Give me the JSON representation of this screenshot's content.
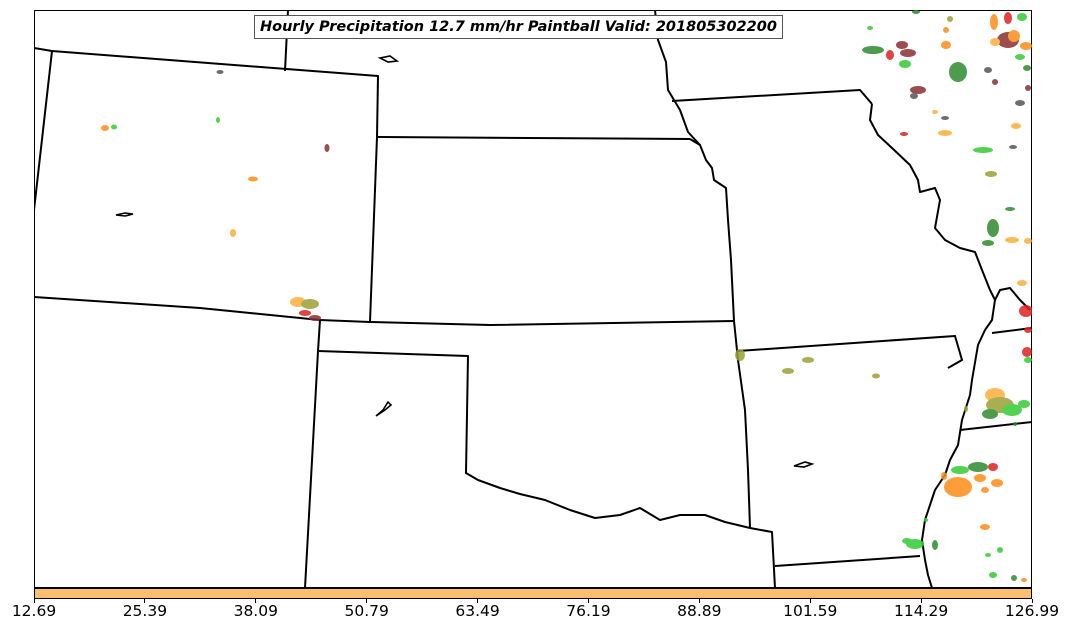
{
  "title": "Hourly Precipitation 12.7 mm/hr Paintball Valid: 201805302200",
  "colorbar": {
    "color": "#fdbf6f",
    "ticks": [
      "12.69",
      "25.39",
      "38.09",
      "50.79",
      "63.49",
      "76.19",
      "88.89",
      "101.59",
      "114.29",
      "126.99"
    ]
  },
  "map": {
    "region": "Central United States",
    "boundary_color": "#000000",
    "paintball_colors": [
      "#33cc33",
      "#2e8b2e",
      "#ff8c1a",
      "#fdae3a",
      "#dd2222",
      "#8b2e2e",
      "#9aa033",
      "#555555"
    ]
  }
}
